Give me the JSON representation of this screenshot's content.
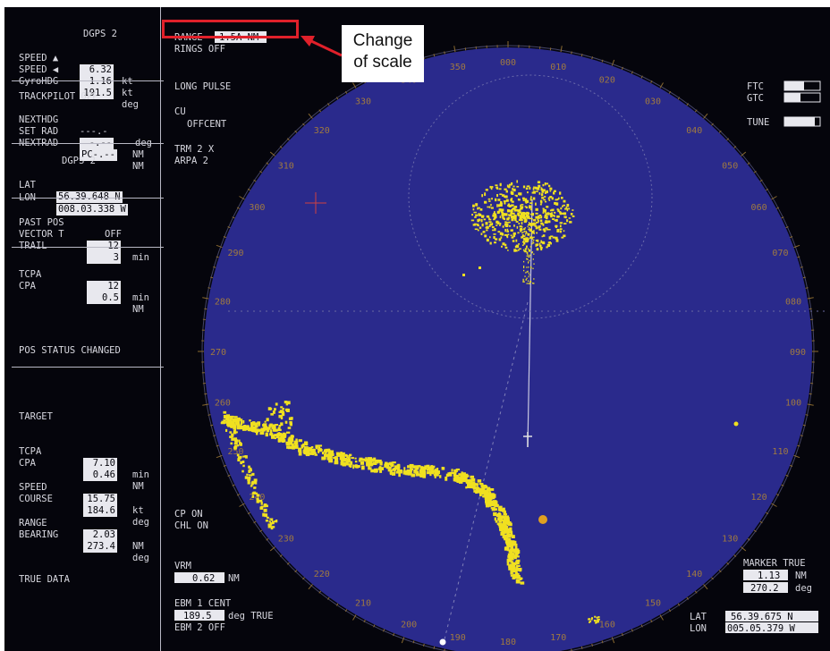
{
  "left_panel": {
    "dgps1": {
      "title": "DGPS 2",
      "speed1": {
        "label": "SPEED ▲",
        "value": "6.32",
        "unit": "kt"
      },
      "speed2": {
        "label": "SPEED ◀",
        "value": "1.16",
        "unit": "kt"
      },
      "gyro": {
        "label": "GyroHDG",
        "value": "191.5",
        "unit": "deg"
      }
    },
    "trackpilot": {
      "title": "TRACKPILOT OFF",
      "nexthdg": {
        "label": "NEXTHDG",
        "value": "---.-",
        "unit": "deg"
      },
      "setrad": {
        "label": "SET RAD",
        "value": "-.--",
        "unit": "NM"
      },
      "nextrad": {
        "label": "NEXTRAD",
        "value": "PC-.--",
        "unit": "NM"
      }
    },
    "dgps2": {
      "title": "DGPS 2",
      "lat": {
        "label": "LAT",
        "value": "56.39.648 N"
      },
      "lon": {
        "label": "LON",
        "value": "008.03.338 W"
      }
    },
    "pastpos": {
      "past": {
        "label": "PAST POS",
        "value": "OFF"
      },
      "vector": {
        "label": "VECTOR T",
        "value": "12",
        "unit": "min"
      },
      "trail": {
        "label": "TRAIL",
        "value": "3"
      }
    },
    "tcpa1": {
      "tcpa": {
        "label": "TCPA",
        "value": "12",
        "unit": "min"
      },
      "cpa": {
        "label": "CPA",
        "value": "0.5",
        "unit": "NM"
      }
    },
    "status": "POS STATUS CHANGED",
    "target": {
      "title": "TARGET",
      "tcpa": {
        "label": "TCPA",
        "value": "7.10",
        "unit": "min"
      },
      "cpa": {
        "label": "CPA",
        "value": "0.46",
        "unit": "NM"
      },
      "speed": {
        "label": "SPEED",
        "value": "15.75",
        "unit": "kt"
      },
      "course": {
        "label": "COURSE",
        "value": "184.6",
        "unit": "deg"
      },
      "range": {
        "label": "RANGE",
        "value": "2.03",
        "unit": "NM"
      },
      "bearing": {
        "label": "BEARING",
        "value": "273.4",
        "unit": "deg"
      }
    },
    "true_data": "TRUE DATA"
  },
  "radar": {
    "range_label": "RANGE",
    "range_value": "1.5A NM",
    "rings": "RINGS OFF",
    "pulse": "LONG  PULSE",
    "cu": "CU",
    "offcent": "OFFCENT",
    "trm": "TRM 2 X",
    "arpa": "ARPA 2",
    "ftc": "FTC",
    "gtc": "GTC",
    "tune": "TUNE",
    "cp": "CP ON",
    "chl": "CHL ON",
    "vrm_label": "VRM",
    "vrm_value": "0.62",
    "vrm_unit": "NM",
    "ebm1_label": "EBM 1  CENT",
    "ebm1_value": "189.5",
    "ebm1_unit": "deg TRUE",
    "ebm2": "EBM 2  OFF",
    "marker_title": "MARKER TRUE",
    "marker_range": "1.13",
    "marker_range_unit": "NM",
    "marker_brg": "270.2",
    "marker_brg_unit": "deg",
    "lat_label": "LAT",
    "lat_value": "56.39.675 N",
    "lon_label": "LON",
    "lon_value": "005.05.379 W",
    "bearing_labels": [
      "350",
      "000",
      "010",
      "020",
      "030",
      "040",
      "050",
      "060",
      "070",
      "080",
      "090",
      "100",
      "110",
      "120",
      "130",
      "140",
      "150",
      "160",
      "170",
      "180",
      "190",
      "200",
      "210",
      "220",
      "230",
      "240",
      "250",
      "260",
      "270",
      "280",
      "290",
      "300",
      "310",
      "320",
      "330",
      "340"
    ]
  },
  "callout": {
    "line1": "Change",
    "line2": "of scale"
  },
  "colors": {
    "scope": "#2a2a8c",
    "echo": "#f0e020",
    "text": "#d8d8e0",
    "highlight": "#e0202a"
  }
}
